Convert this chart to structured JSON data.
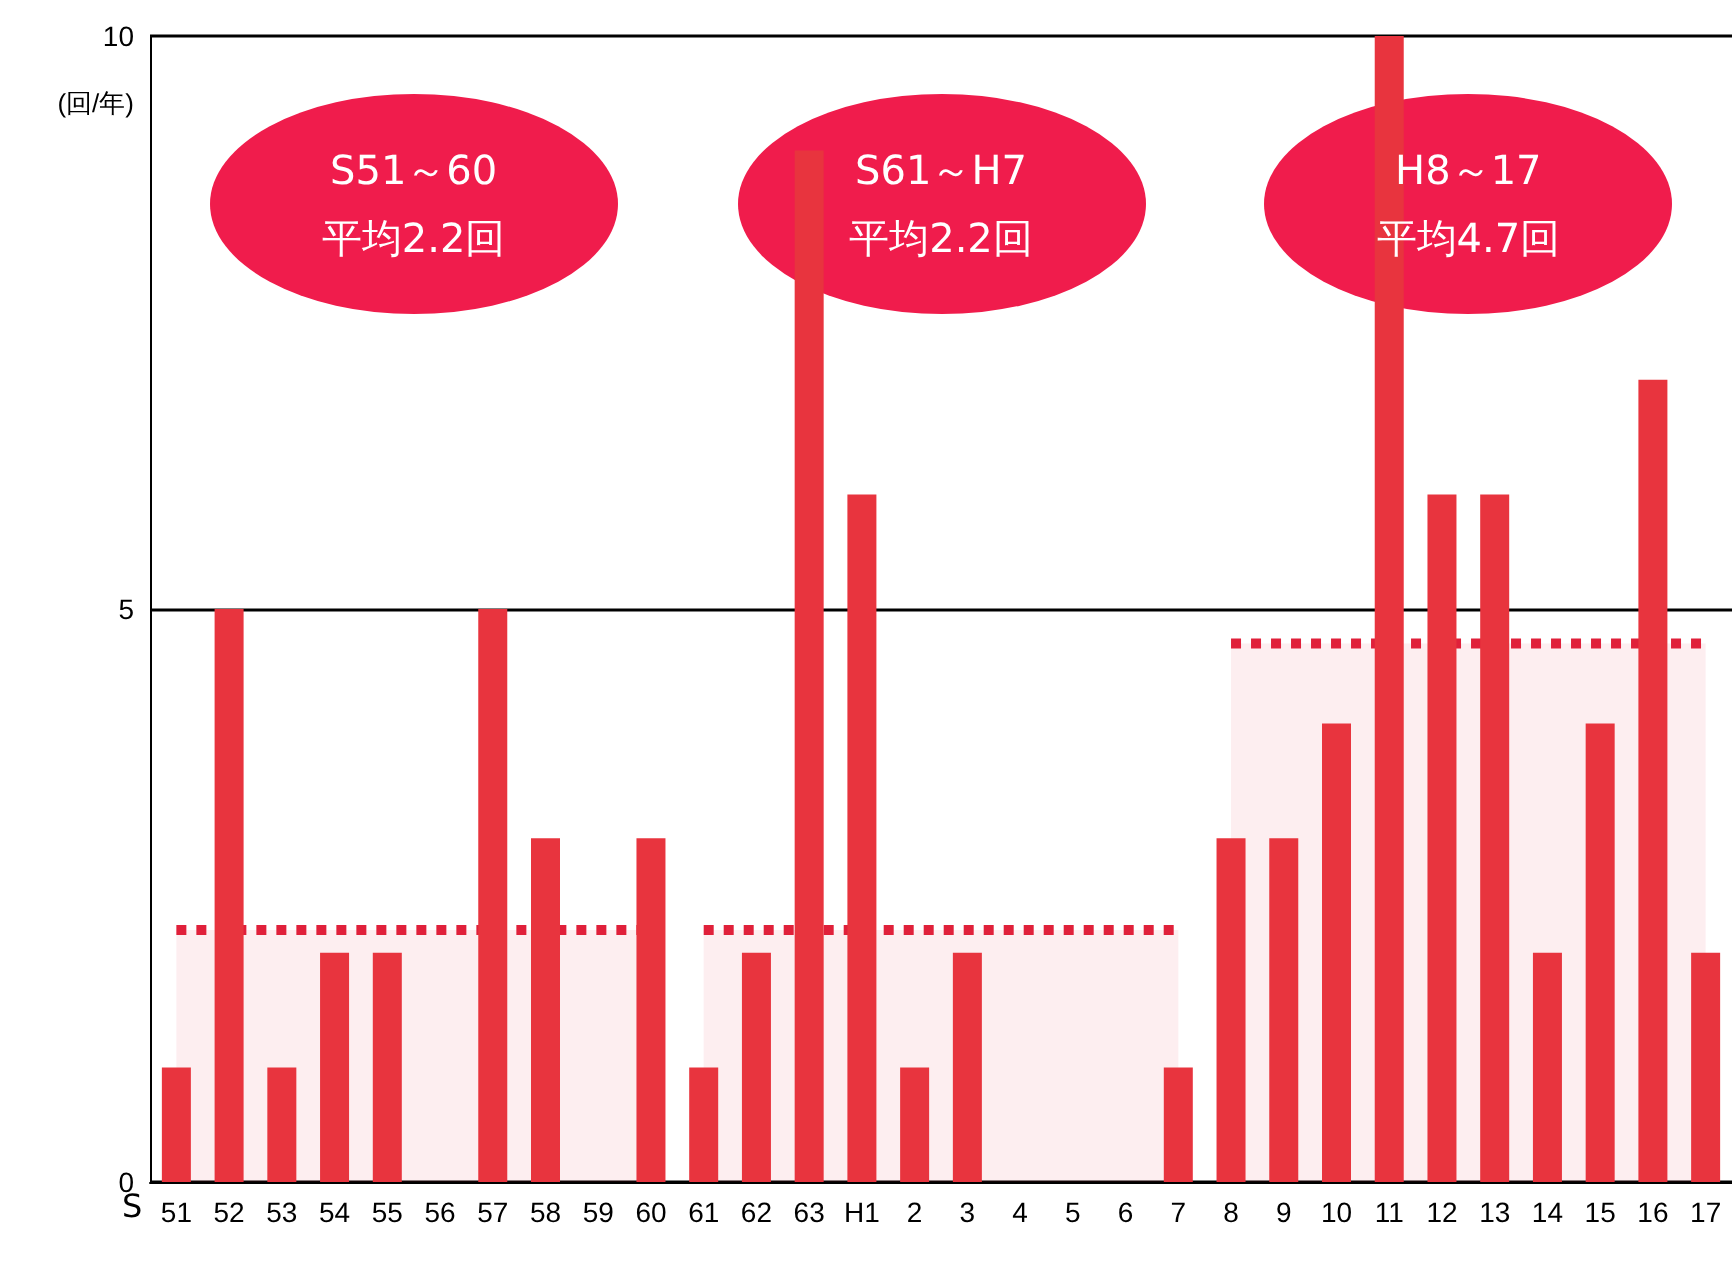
{
  "chart_data": {
    "type": "bar",
    "ylabel": "(回/年)",
    "categories": [
      "51",
      "52",
      "53",
      "54",
      "55",
      "56",
      "57",
      "58",
      "59",
      "60",
      "61",
      "62",
      "63",
      "H1",
      "2",
      "3",
      "4",
      "5",
      "6",
      "7",
      "8",
      "9",
      "10",
      "11",
      "12",
      "13",
      "14",
      "15",
      "16",
      "17"
    ],
    "series": [
      {
        "color": "#e8343e",
        "values": [
          1,
          5,
          1,
          2,
          2,
          0,
          5,
          3,
          0,
          3,
          1,
          2,
          9,
          6,
          1,
          2,
          0,
          0,
          0,
          1,
          3,
          3,
          4,
          10,
          6,
          6,
          2,
          4,
          7,
          2
        ]
      },
      {
        "type": "area",
        "color": "#e0203a",
        "line_style": "dotted",
        "values": [
          2.2,
          2.2,
          2.2,
          2.2,
          2.2,
          2.2,
          2.2,
          2.2,
          2.2,
          2.2,
          null,
          null,
          null,
          null,
          null,
          null,
          null,
          null,
          null,
          null,
          null,
          null,
          null,
          null,
          null,
          null,
          null,
          null,
          null,
          null
        ]
      },
      {
        "type": "area",
        "color": "#e0203a",
        "line_style": "dotted",
        "values": [
          null,
          null,
          null,
          null,
          null,
          null,
          null,
          null,
          null,
          null,
          2.2,
          2.2,
          2.2,
          2.2,
          2.2,
          2.2,
          2.2,
          2.2,
          2.2,
          2.2,
          null,
          null,
          null,
          null,
          null,
          null,
          null,
          null,
          null,
          null
        ]
      },
      {
        "type": "area",
        "color": "#e0203a",
        "line_style": "dotted",
        "values": [
          null,
          null,
          null,
          null,
          null,
          null,
          null,
          null,
          null,
          null,
          null,
          null,
          null,
          null,
          null,
          null,
          null,
          null,
          null,
          null,
          4.7,
          4.7,
          4.7,
          4.7,
          4.7,
          4.7,
          4.7,
          4.7,
          4.7,
          4.7
        ]
      }
    ],
    "ylim": [
      0,
      10
    ],
    "yticks": [
      0,
      5,
      10
    ],
    "grid": "y",
    "annotations": [
      "S51～60\n平均2.2回",
      "S61～H7\n平均2.2回",
      "H8～17\n平均4.7回",
      "S"
    ]
  }
}
